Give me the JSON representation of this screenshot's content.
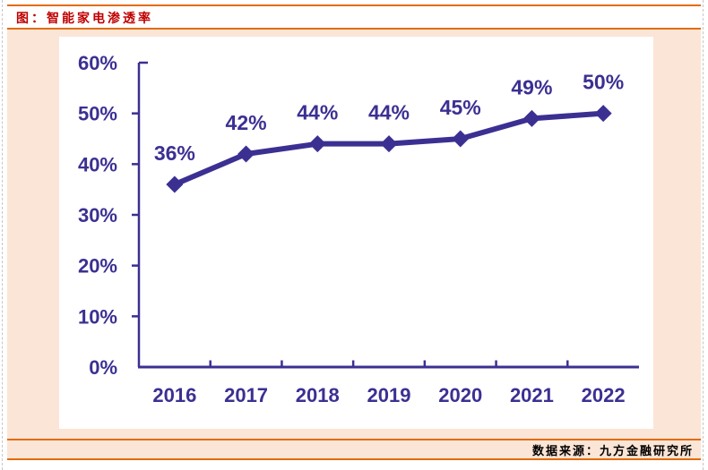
{
  "header": {
    "title": "图：智能家电渗透率"
  },
  "footer": {
    "source": "数据来源：九方金融研究所"
  },
  "colors": {
    "title_red": "#C00000",
    "rule_orange": "#E26B0A",
    "panel_peach": "#FBE5D6",
    "series_purple": "#3B3092",
    "chart_background": "#FFFFFF"
  },
  "chart_data": {
    "type": "line",
    "title": "智能家电渗透率",
    "categories": [
      "2016",
      "2017",
      "2018",
      "2019",
      "2020",
      "2021",
      "2022"
    ],
    "series": [
      {
        "name": "智能家电渗透率",
        "values": [
          36,
          42,
          44,
          44,
          45,
          49,
          50
        ]
      }
    ],
    "data_labels": [
      "36%",
      "42%",
      "44%",
      "44%",
      "45%",
      "49%",
      "50%"
    ],
    "y_tick_labels": [
      "0%",
      "10%",
      "20%",
      "30%",
      "40%",
      "50%",
      "60%"
    ],
    "ylim": [
      0,
      60
    ],
    "y_tick_step": 10,
    "xlabel": "",
    "ylabel": "",
    "grid": false,
    "legend": "none",
    "marker": "diamond"
  }
}
